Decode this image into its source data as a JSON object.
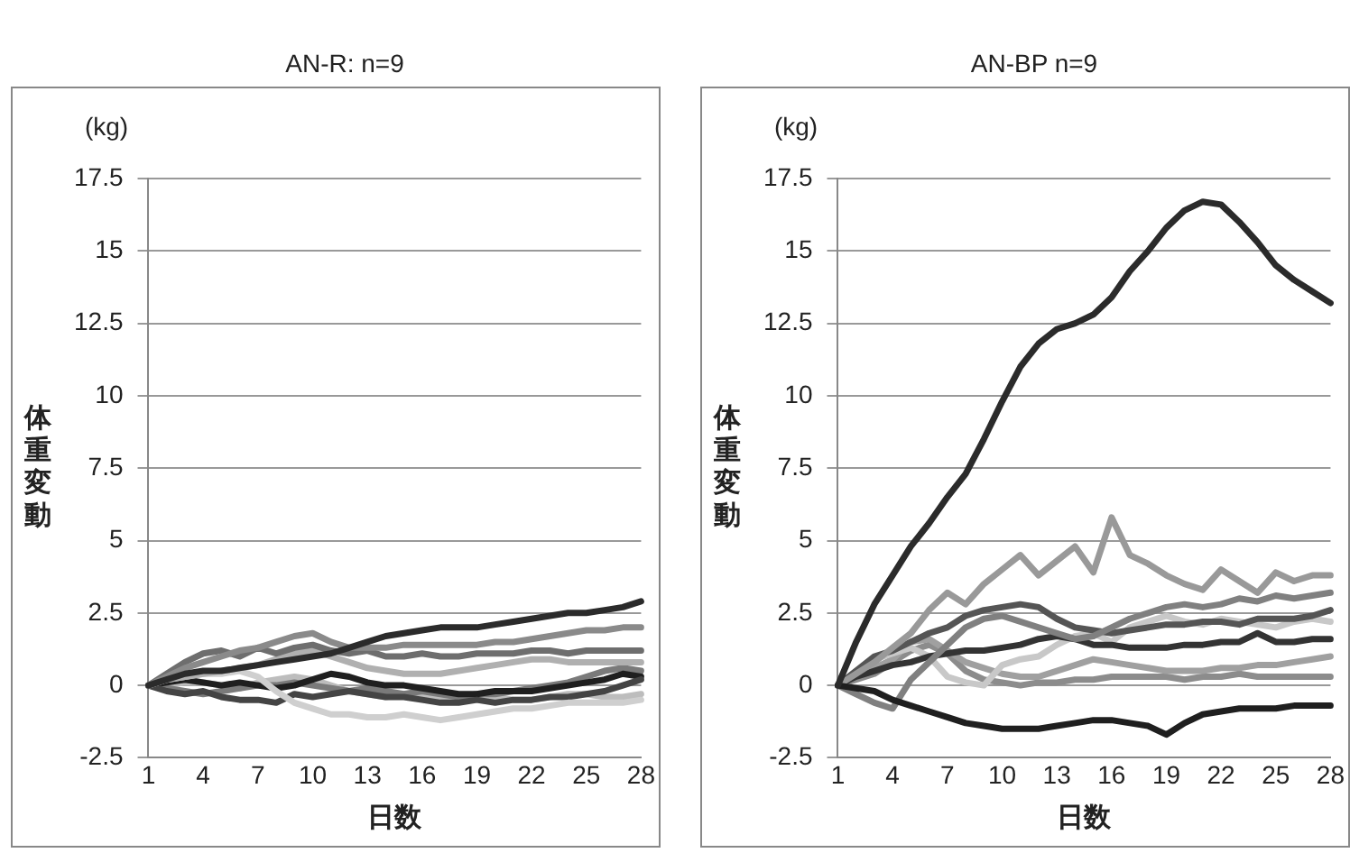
{
  "chart_data": [
    {
      "type": "line",
      "title": "AN-R: n=9",
      "xlabel": "日数",
      "ylabel": "体重変動",
      "annotations": [
        "(kg)"
      ],
      "categories": [
        "1",
        null,
        null,
        "4",
        null,
        null,
        "7",
        null,
        null,
        "10",
        null,
        null,
        "13",
        null,
        null,
        "16",
        null,
        null,
        "19",
        null,
        null,
        "22",
        null,
        null,
        "25",
        null,
        null,
        "28"
      ],
      "ylim": [
        -2.5,
        17.5
      ],
      "yticks": [
        -2.5,
        0,
        2.5,
        5,
        7.5,
        10,
        12.5,
        15,
        17.5
      ],
      "grid": "y",
      "legend": false,
      "marker": "none",
      "line_style": "solid",
      "series": [
        {
          "color": "#2b2b2b",
          "values": [
            0,
            0.2,
            0.4,
            0.5,
            0.5,
            0.6,
            0.7,
            0.8,
            0.9,
            1.0,
            1.1,
            1.3,
            1.5,
            1.7,
            1.8,
            1.9,
            2.0,
            2.0,
            2.0,
            2.1,
            2.2,
            2.3,
            2.4,
            2.5,
            2.5,
            2.6,
            2.7,
            2.9
          ]
        },
        {
          "color": "#8a8a8a",
          "values": [
            0,
            0.3,
            0.6,
            0.8,
            1.0,
            1.2,
            1.3,
            1.5,
            1.7,
            1.8,
            1.5,
            1.3,
            1.3,
            1.3,
            1.4,
            1.4,
            1.4,
            1.4,
            1.4,
            1.5,
            1.5,
            1.6,
            1.7,
            1.8,
            1.9,
            1.9,
            2.0,
            2.0
          ]
        },
        {
          "color": "#6e6e6e",
          "values": [
            0,
            0.4,
            0.8,
            1.1,
            1.2,
            1.0,
            1.3,
            1.1,
            1.3,
            1.4,
            1.2,
            1.1,
            1.2,
            1.0,
            1.0,
            1.1,
            1.0,
            1.0,
            1.1,
            1.1,
            1.1,
            1.2,
            1.2,
            1.1,
            1.2,
            1.2,
            1.2,
            1.2
          ]
        },
        {
          "color": "#b0b0b0",
          "values": [
            0,
            0.2,
            0.3,
            0.4,
            0.5,
            0.6,
            0.7,
            0.9,
            1.1,
            1.2,
            1.0,
            0.8,
            0.6,
            0.5,
            0.4,
            0.4,
            0.4,
            0.5,
            0.6,
            0.7,
            0.8,
            0.9,
            0.9,
            0.8,
            0.8,
            0.8,
            0.8,
            0.8
          ]
        },
        {
          "color": "#cfcfcf",
          "values": [
            0,
            0.2,
            0.3,
            0.4,
            0.4,
            0.5,
            0.3,
            -0.2,
            -0.6,
            -0.8,
            -1.0,
            -1.0,
            -1.1,
            -1.1,
            -1.0,
            -1.1,
            -1.2,
            -1.1,
            -1.0,
            -0.9,
            -0.8,
            -0.8,
            -0.7,
            -0.6,
            -0.6,
            -0.6,
            -0.6,
            -0.5
          ]
        },
        {
          "color": "#444444",
          "values": [
            0,
            -0.2,
            -0.3,
            -0.2,
            -0.4,
            -0.5,
            -0.5,
            -0.6,
            -0.3,
            -0.4,
            -0.3,
            -0.2,
            -0.3,
            -0.4,
            -0.4,
            -0.5,
            -0.6,
            -0.6,
            -0.5,
            -0.6,
            -0.5,
            -0.5,
            -0.4,
            -0.4,
            -0.3,
            -0.2,
            0.0,
            0.2
          ]
        },
        {
          "color": "#1f1f1f",
          "values": [
            0,
            0.1,
            0.2,
            0.1,
            0.0,
            0.1,
            0.0,
            -0.1,
            0.0,
            0.2,
            0.4,
            0.3,
            0.1,
            0.0,
            0.0,
            -0.1,
            -0.2,
            -0.3,
            -0.3,
            -0.2,
            -0.2,
            -0.2,
            -0.1,
            0.0,
            0.1,
            0.2,
            0.4,
            0.3
          ]
        },
        {
          "color": "#7a7a7a",
          "values": [
            0,
            -0.1,
            -0.2,
            -0.3,
            -0.2,
            -0.1,
            0.0,
            0.0,
            0.1,
            0.0,
            -0.1,
            -0.2,
            -0.1,
            -0.2,
            -0.3,
            -0.2,
            -0.3,
            -0.4,
            -0.3,
            -0.3,
            -0.2,
            -0.1,
            0.0,
            0.1,
            0.3,
            0.5,
            0.6,
            0.5
          ]
        },
        {
          "color": "#bdbdbd",
          "values": [
            0,
            0.0,
            0.1,
            0.1,
            0.0,
            -0.1,
            0.1,
            0.2,
            0.3,
            0.2,
            0.0,
            -0.2,
            -0.3,
            -0.4,
            -0.3,
            -0.3,
            -0.4,
            -0.5,
            -0.4,
            -0.4,
            -0.5,
            -0.5,
            -0.4,
            -0.3,
            -0.3,
            -0.4,
            -0.4,
            -0.3
          ]
        }
      ]
    },
    {
      "type": "line",
      "title": "AN-BP n=9",
      "xlabel": "日数",
      "ylabel": "体重変動",
      "annotations": [
        "(kg)"
      ],
      "categories": [
        "1",
        null,
        null,
        "4",
        null,
        null,
        "7",
        null,
        null,
        "10",
        null,
        null,
        "13",
        null,
        null,
        "16",
        null,
        null,
        "19",
        null,
        null,
        "22",
        null,
        null,
        "25",
        null,
        null,
        "28"
      ],
      "ylim": [
        -2.5,
        17.5
      ],
      "yticks": [
        -2.5,
        0,
        2.5,
        5,
        7.5,
        10,
        12.5,
        15,
        17.5
      ],
      "grid": "y",
      "legend": false,
      "marker": "none",
      "line_style": "solid",
      "series": [
        {
          "color": "#2b2b2b",
          "values": [
            0,
            1.5,
            2.8,
            3.8,
            4.8,
            5.6,
            6.5,
            7.3,
            8.5,
            9.8,
            11.0,
            11.8,
            12.3,
            12.5,
            12.8,
            13.4,
            14.3,
            15.0,
            15.8,
            16.4,
            16.7,
            16.6,
            16.0,
            15.3,
            14.5,
            14.0,
            13.6,
            13.2
          ]
        },
        {
          "color": "#1f1f1f",
          "values": [
            0,
            -0.1,
            -0.2,
            -0.5,
            -0.7,
            -0.9,
            -1.1,
            -1.3,
            -1.4,
            -1.5,
            -1.5,
            -1.5,
            -1.4,
            -1.3,
            -1.2,
            -1.2,
            -1.3,
            -1.4,
            -1.7,
            -1.3,
            -1.0,
            -0.9,
            -0.8,
            -0.8,
            -0.8,
            -0.7,
            -0.7,
            -0.7
          ]
        },
        {
          "color": "#999999",
          "values": [
            0,
            0.4,
            0.8,
            1.3,
            1.8,
            2.6,
            3.2,
            2.8,
            3.5,
            4.0,
            4.5,
            3.8,
            4.3,
            4.8,
            3.9,
            5.8,
            4.5,
            4.2,
            3.8,
            3.5,
            3.3,
            4.0,
            3.6,
            3.2,
            3.9,
            3.6,
            3.8,
            3.8
          ]
        },
        {
          "color": "#808080",
          "values": [
            0,
            -0.3,
            -0.6,
            -0.8,
            0.2,
            0.8,
            1.4,
            2.0,
            2.3,
            2.4,
            2.2,
            2.0,
            1.8,
            1.6,
            1.7,
            2.0,
            2.3,
            2.5,
            2.7,
            2.8,
            2.7,
            2.8,
            3.0,
            2.9,
            3.1,
            3.0,
            3.1,
            3.2
          ]
        },
        {
          "color": "#555555",
          "values": [
            0,
            0.5,
            1.0,
            1.2,
            1.5,
            1.8,
            2.0,
            2.4,
            2.6,
            2.7,
            2.8,
            2.7,
            2.3,
            2.0,
            1.9,
            1.8,
            1.9,
            2.0,
            2.1,
            2.1,
            2.2,
            2.2,
            2.1,
            2.3,
            2.3,
            2.3,
            2.4,
            2.6
          ]
        },
        {
          "color": "#333333",
          "values": [
            0,
            0.3,
            0.5,
            0.7,
            0.8,
            1.0,
            1.1,
            1.2,
            1.2,
            1.3,
            1.4,
            1.6,
            1.7,
            1.6,
            1.4,
            1.4,
            1.3,
            1.3,
            1.3,
            1.4,
            1.4,
            1.5,
            1.5,
            1.8,
            1.5,
            1.5,
            1.6,
            1.6
          ]
        },
        {
          "color": "#c8c8c8",
          "values": [
            0,
            0.5,
            0.9,
            1.1,
            1.3,
            1.0,
            0.3,
            0.1,
            0.0,
            0.7,
            0.9,
            1.0,
            1.4,
            1.7,
            1.8,
            1.5,
            2.0,
            2.2,
            2.4,
            2.2,
            2.1,
            2.3,
            2.2,
            2.1,
            2.0,
            2.2,
            2.3,
            2.2
          ]
        },
        {
          "color": "#a0a0a0",
          "values": [
            0,
            0.3,
            0.6,
            0.9,
            1.5,
            1.6,
            1.2,
            0.8,
            0.6,
            0.4,
            0.3,
            0.3,
            0.5,
            0.7,
            0.9,
            0.8,
            0.7,
            0.6,
            0.5,
            0.5,
            0.5,
            0.6,
            0.6,
            0.7,
            0.7,
            0.8,
            0.9,
            1.0
          ]
        },
        {
          "color": "#8c8c8c",
          "values": [
            0,
            0.2,
            0.4,
            0.8,
            1.2,
            1.4,
            1.1,
            0.5,
            0.2,
            0.1,
            0.0,
            0.1,
            0.1,
            0.2,
            0.2,
            0.3,
            0.3,
            0.3,
            0.3,
            0.2,
            0.3,
            0.3,
            0.4,
            0.3,
            0.3,
            0.3,
            0.3,
            0.3
          ]
        }
      ]
    }
  ]
}
